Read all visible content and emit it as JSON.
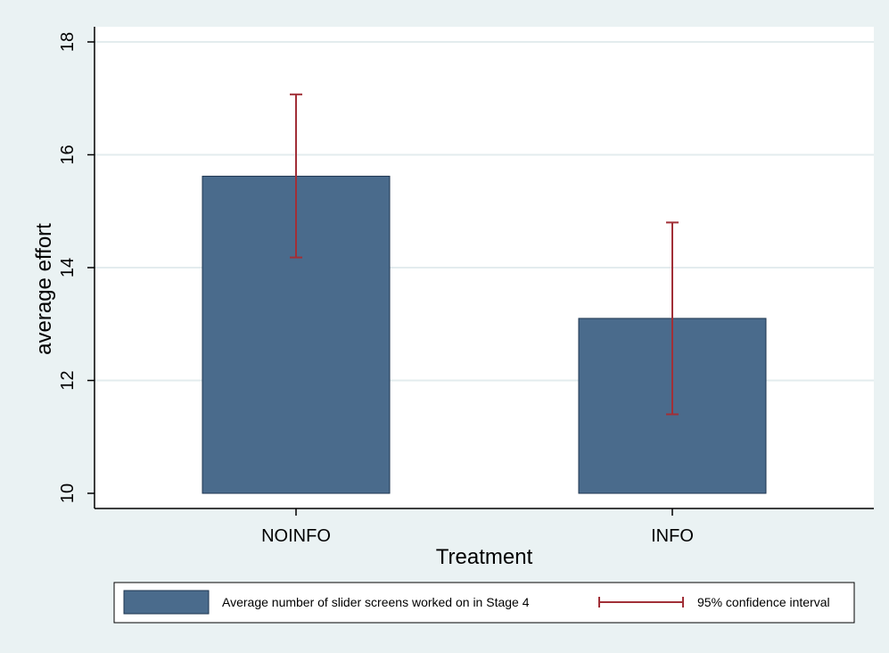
{
  "chart_data": {
    "type": "bar",
    "xlabel": "Treatment",
    "ylabel": "average effort",
    "ylim": [
      10,
      18
    ],
    "yticks": [
      10,
      12,
      14,
      16,
      18
    ],
    "categories": [
      "NOINFO",
      "INFO"
    ],
    "series": [
      {
        "name": "Average number of slider screens worked on in Stage 4",
        "values": [
          15.62,
          13.1
        ]
      }
    ],
    "error_bars": {
      "name": "95% confidence interval",
      "lower": [
        14.18,
        11.4
      ],
      "upper": [
        17.07,
        14.8
      ]
    },
    "grid": true,
    "legend_position": "bottom",
    "colors": {
      "background": "#eaf2f3",
      "plot_area": "#ffffff",
      "bar_fill": "#4a6b8c",
      "bar_stroke": "#1e3650",
      "ci": "#a12f37",
      "gridline": "#e3ecee"
    }
  }
}
